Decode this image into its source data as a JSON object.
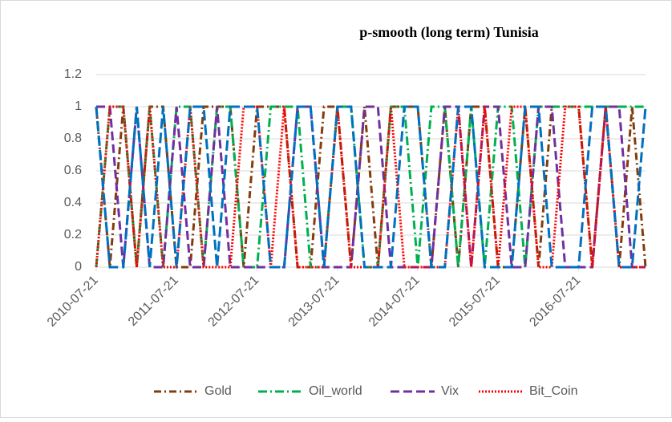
{
  "chart_data": {
    "type": "line",
    "title": "p-smooth (long term) Tunisia",
    "x": [
      "2010-07-21",
      "2010-09-21",
      "2010-11-21",
      "2011-01-21",
      "2011-03-21",
      "2011-05-21",
      "2011-07-21",
      "2011-09-21",
      "2011-11-21",
      "2012-01-21",
      "2012-03-21",
      "2012-05-21",
      "2012-07-21",
      "2012-09-21",
      "2012-11-21",
      "2013-01-21",
      "2013-03-21",
      "2013-05-21",
      "2013-07-21",
      "2013-09-21",
      "2013-11-21",
      "2014-01-21",
      "2014-03-21",
      "2014-05-21",
      "2014-07-21",
      "2014-09-21",
      "2014-11-21",
      "2015-01-21",
      "2015-03-21",
      "2015-05-21",
      "2015-07-21",
      "2015-09-21",
      "2015-11-21",
      "2016-01-21",
      "2016-03-21",
      "2016-05-21",
      "2016-07-21",
      "2016-09-21",
      "2016-11-21",
      "2017-01-21",
      "2017-03-21",
      "2017-05-21"
    ],
    "series": [
      {
        "name": "Gold",
        "color": "#843c0c",
        "dash": "9 4 2 4",
        "values": [
          1,
          0,
          1,
          0,
          1,
          1,
          0,
          0,
          1,
          1,
          1,
          0,
          1,
          1,
          1,
          0,
          0,
          1,
          1,
          0,
          1,
          0,
          1,
          1,
          1,
          0,
          1,
          0,
          1,
          1,
          0,
          0,
          1,
          0,
          1,
          1,
          1,
          0,
          1,
          0,
          1,
          0
        ]
      },
      {
        "name": "Oil_world",
        "color": "#00b050",
        "dash": "11 4 2 4",
        "values": [
          0,
          1,
          1,
          0,
          1,
          0,
          1,
          1,
          0,
          1,
          1,
          0,
          0,
          1,
          1,
          1,
          0,
          0,
          1,
          1,
          0,
          0,
          1,
          1,
          0,
          1,
          1,
          0,
          1,
          0,
          1,
          1,
          0,
          1,
          1,
          1,
          1,
          1,
          1,
          1,
          1,
          1
        ]
      },
      {
        "name": "Vix",
        "color": "#7030a0",
        "dash": "11 5",
        "values": [
          1,
          1,
          0,
          1,
          0,
          0,
          1,
          0,
          0,
          1,
          0,
          0,
          0,
          0,
          0,
          1,
          1,
          0,
          0,
          0,
          1,
          1,
          0,
          0,
          0,
          0,
          1,
          1,
          0,
          1,
          1,
          0,
          0,
          1,
          1,
          0,
          0,
          0,
          1,
          1,
          0,
          0
        ]
      },
      {
        "name": "Bit_Coin",
        "color": "#ff0000",
        "dash": "2 2",
        "values": [
          0,
          1,
          1,
          0,
          1,
          0,
          0,
          1,
          0,
          0,
          0,
          1,
          1,
          0,
          1,
          0,
          0,
          0,
          1,
          0,
          0,
          0,
          1,
          0,
          0,
          0,
          0,
          1,
          0,
          1,
          0,
          1,
          1,
          0,
          0,
          1,
          1,
          0,
          1,
          0,
          0,
          0
        ]
      },
      {
        "color": "#0070c0",
        "dash": "13 5",
        "values": [
          1,
          0,
          0,
          1,
          0,
          1,
          0,
          1,
          1,
          0,
          1,
          1,
          1,
          0,
          0,
          1,
          1,
          0,
          1,
          1,
          0,
          0,
          0,
          1,
          1,
          0,
          0,
          1,
          1,
          0,
          0,
          0,
          1,
          1,
          0,
          0,
          0,
          1,
          1,
          0,
          0,
          1
        ]
      }
    ],
    "xlim": [
      "2010-07-21",
      "2017-05-21"
    ],
    "xticks": [
      "2010-07-21",
      "2011-07-21",
      "2012-07-21",
      "2013-07-21",
      "2014-07-21",
      "2015-07-21",
      "2016-07-21"
    ],
    "ylim": [
      0,
      1.2
    ],
    "yticks": [
      0,
      0.2,
      0.4,
      0.6,
      0.8,
      1,
      1.2
    ],
    "grid": true
  }
}
